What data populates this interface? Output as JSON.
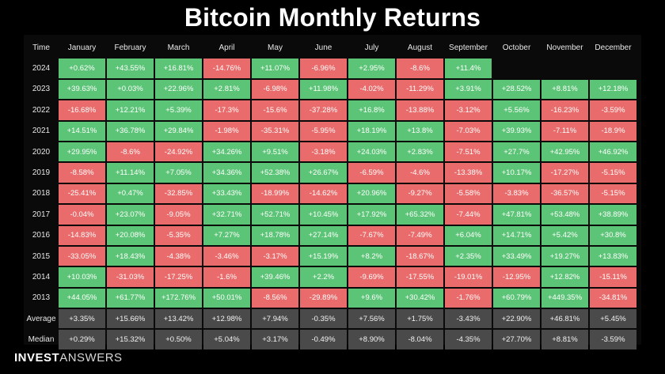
{
  "brand": {
    "part1": "INVEST",
    "part2": "ANSWERS"
  },
  "chart_data": {
    "type": "table",
    "title": "Bitcoin Monthly Returns",
    "corner_label": "Time",
    "columns": [
      "January",
      "February",
      "March",
      "April",
      "May",
      "June",
      "July",
      "August",
      "September",
      "October",
      "November",
      "December"
    ],
    "rows": [
      {
        "label": "2024",
        "values": [
          "+0.62%",
          "+43.55%",
          "+16.81%",
          "-14.76%",
          "+11.07%",
          "-6.96%",
          "+2.95%",
          "-8.6%",
          "+11.4%",
          "",
          "",
          ""
        ]
      },
      {
        "label": "2023",
        "values": [
          "+39.63%",
          "+0.03%",
          "+22.96%",
          "+2.81%",
          "-6.98%",
          "+11.98%",
          "-4.02%",
          "-11.29%",
          "+3.91%",
          "+28.52%",
          "+8.81%",
          "+12.18%"
        ]
      },
      {
        "label": "2022",
        "values": [
          "-16.68%",
          "+12.21%",
          "+5.39%",
          "-17.3%",
          "-15.6%",
          "-37.28%",
          "+16.8%",
          "-13.88%",
          "-3.12%",
          "+5.56%",
          "-16.23%",
          "-3.59%"
        ]
      },
      {
        "label": "2021",
        "values": [
          "+14.51%",
          "+36.78%",
          "+29.84%",
          "-1.98%",
          "-35.31%",
          "-5.95%",
          "+18.19%",
          "+13.8%",
          "-7.03%",
          "+39.93%",
          "-7.11%",
          "-18.9%"
        ]
      },
      {
        "label": "2020",
        "values": [
          "+29.95%",
          "-8.6%",
          "-24.92%",
          "+34.26%",
          "+9.51%",
          "-3.18%",
          "+24.03%",
          "+2.83%",
          "-7.51%",
          "+27.7%",
          "+42.95%",
          "+46.92%"
        ]
      },
      {
        "label": "2019",
        "values": [
          "-8.58%",
          "+11.14%",
          "+7.05%",
          "+34.36%",
          "+52.38%",
          "+26.67%",
          "-6.59%",
          "-4.6%",
          "-13.38%",
          "+10.17%",
          "-17.27%",
          "-5.15%"
        ]
      },
      {
        "label": "2018",
        "values": [
          "-25.41%",
          "+0.47%",
          "-32.85%",
          "+33.43%",
          "-18.99%",
          "-14.62%",
          "+20.96%",
          "-9.27%",
          "-5.58%",
          "-3.83%",
          "-36.57%",
          "-5.15%"
        ]
      },
      {
        "label": "2017",
        "values": [
          "-0.04%",
          "+23.07%",
          "-9.05%",
          "+32.71%",
          "+52.71%",
          "+10.45%",
          "+17.92%",
          "+65.32%",
          "-7.44%",
          "+47.81%",
          "+53.48%",
          "+38.89%"
        ]
      },
      {
        "label": "2016",
        "values": [
          "-14.83%",
          "+20.08%",
          "-5.35%",
          "+7.27%",
          "+18.78%",
          "+27.14%",
          "-7.67%",
          "-7.49%",
          "+6.04%",
          "+14.71%",
          "+5.42%",
          "+30.8%"
        ]
      },
      {
        "label": "2015",
        "values": [
          "-33.05%",
          "+18.43%",
          "-4.38%",
          "-3.46%",
          "-3.17%",
          "+15.19%",
          "+8.2%",
          "-18.67%",
          "+2.35%",
          "+33.49%",
          "+19.27%",
          "+13.83%"
        ]
      },
      {
        "label": "2014",
        "values": [
          "+10.03%",
          "-31.03%",
          "-17.25%",
          "-1.6%",
          "+39.46%",
          "+2.2%",
          "-9.69%",
          "-17.55%",
          "-19.01%",
          "-12.95%",
          "+12.82%",
          "-15.11%"
        ]
      },
      {
        "label": "2013",
        "values": [
          "+44.05%",
          "+61.77%",
          "+172.76%",
          "+50.01%",
          "-8.56%",
          "-29.89%",
          "+9.6%",
          "+30.42%",
          "-1.76%",
          "+60.79%",
          "+449.35%",
          "-34.81%"
        ]
      }
    ],
    "stats": [
      {
        "label": "Average",
        "values": [
          "+3.35%",
          "+15.66%",
          "+13.42%",
          "+12.98%",
          "+7.94%",
          "-0.35%",
          "+7.56%",
          "+1.75%",
          "-3.43%",
          "+22.90%",
          "+46.81%",
          "+5.45%"
        ]
      },
      {
        "label": "Median",
        "values": [
          "+0.29%",
          "+15.32%",
          "+0.50%",
          "+5.04%",
          "+3.17%",
          "-0.49%",
          "+8.90%",
          "-8.04%",
          "-4.35%",
          "+27.70%",
          "+8.81%",
          "-3.59%"
        ]
      }
    ],
    "colors": {
      "positive": "#5cc477",
      "negative": "#ea6b6b",
      "stat": "#4a4a4a",
      "background": "#000000"
    }
  }
}
